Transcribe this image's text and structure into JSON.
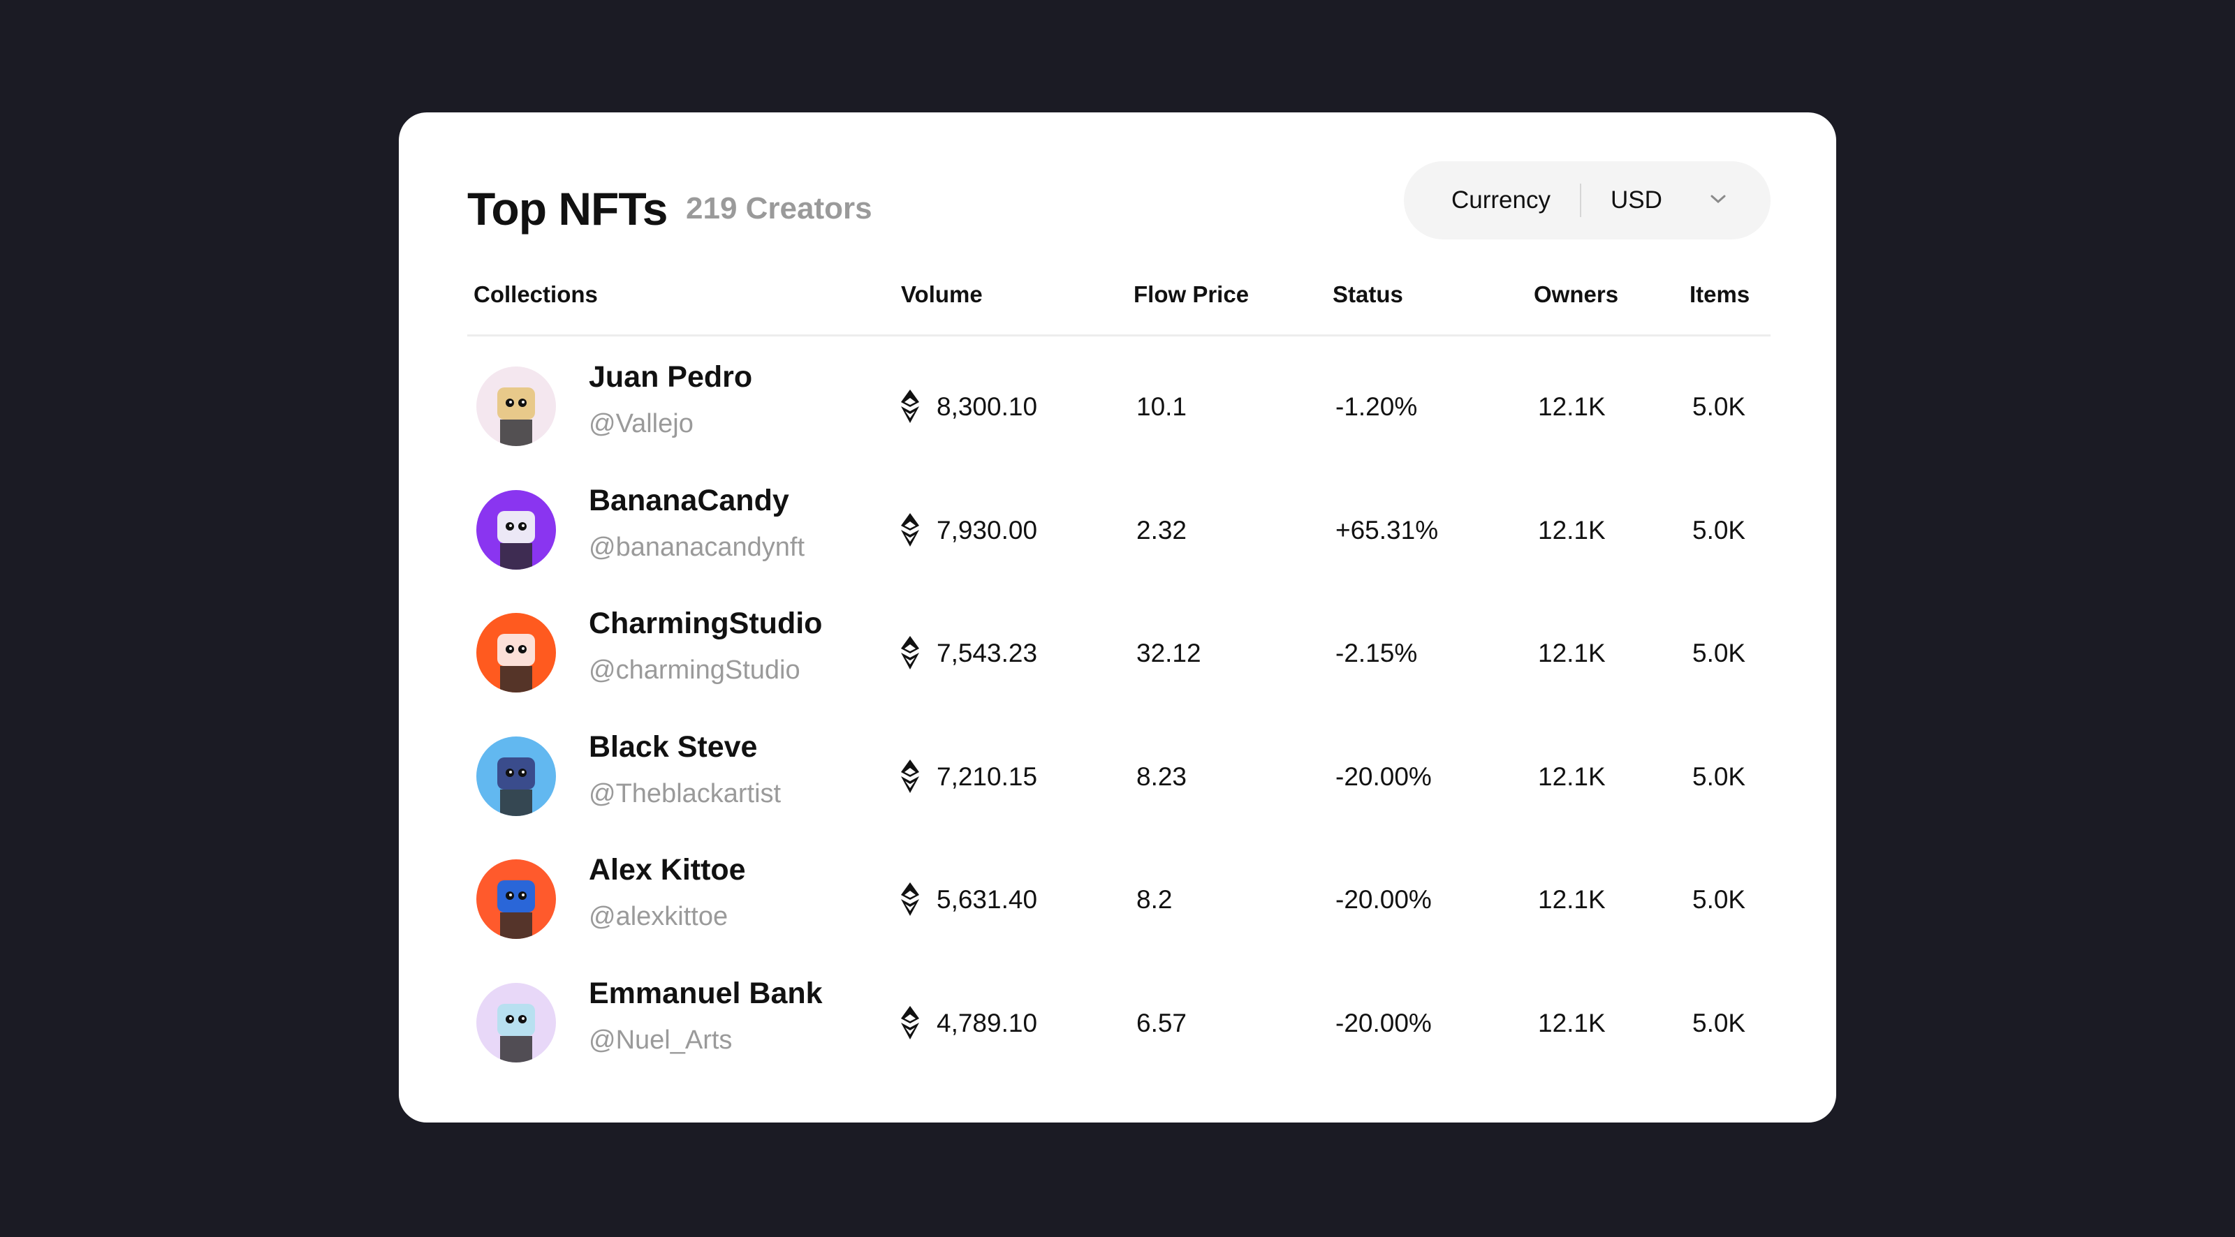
{
  "header": {
    "title": "Top NFTs",
    "subtitle": "219 Creators"
  },
  "currency": {
    "label": "Currency",
    "value": "USD"
  },
  "table": {
    "columns": [
      "Collections",
      "Volume",
      "Flow Price",
      "Status",
      "Owners",
      "Items"
    ],
    "rows": [
      {
        "name": "Juan Pedro",
        "handle": "@Vallejo",
        "volume": "8,300.10",
        "flow_price": "10.1",
        "status": "-1.20%",
        "owners": "12.1K",
        "items": "5.0K"
      },
      {
        "name": "BananaCandy",
        "handle": "@bananacandynft",
        "volume": "7,930.00",
        "flow_price": "2.32",
        "status": "+65.31%",
        "owners": "12.1K",
        "items": "5.0K"
      },
      {
        "name": "CharmingStudio",
        "handle": "@charmingStudio",
        "volume": "7,543.23",
        "flow_price": "32.12",
        "status": "-2.15%",
        "owners": "12.1K",
        "items": "5.0K"
      },
      {
        "name": "Black Steve",
        "handle": "@Theblackartist",
        "volume": "7,210.15",
        "flow_price": "8.23",
        "status": "-20.00%",
        "owners": "12.1K",
        "items": "5.0K"
      },
      {
        "name": "Alex Kittoe",
        "handle": "@alexkittoe",
        "volume": "5,631.40",
        "flow_price": "8.2",
        "status": "-20.00%",
        "owners": "12.1K",
        "items": "5.0K"
      },
      {
        "name": "Emmanuel Bank",
        "handle": "@Nuel_Arts",
        "volume": "4,789.10",
        "flow_price": "6.57",
        "status": "-20.00%",
        "owners": "12.1K",
        "items": "5.0K"
      }
    ]
  }
}
